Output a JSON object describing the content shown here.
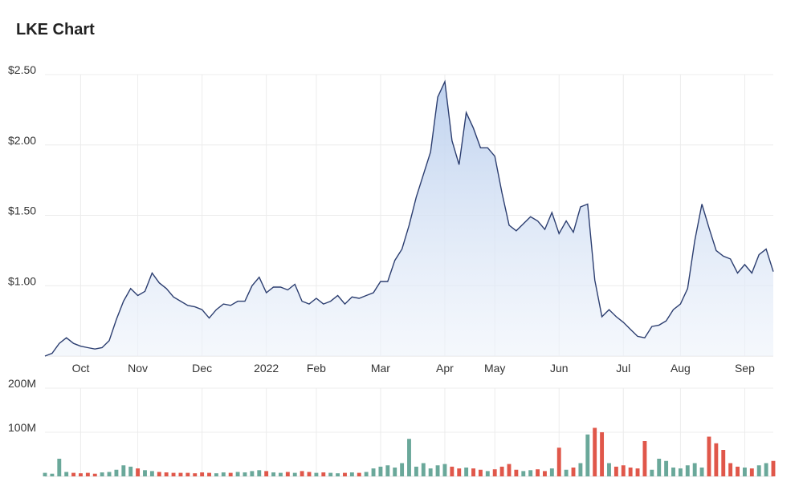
{
  "chart_data": [
    {
      "type": "area",
      "title": "LKE Chart",
      "color": "#2c3e70",
      "grid": true,
      "categories": [
        null,
        null,
        null,
        null,
        null,
        "Oct",
        null,
        null,
        null,
        null,
        null,
        null,
        null,
        "Nov",
        null,
        null,
        null,
        null,
        null,
        null,
        null,
        null,
        "Dec",
        null,
        null,
        null,
        null,
        null,
        null,
        null,
        null,
        "2022",
        null,
        null,
        null,
        null,
        null,
        null,
        "Feb",
        null,
        null,
        null,
        null,
        null,
        null,
        null,
        null,
        "Mar",
        null,
        null,
        null,
        null,
        null,
        null,
        null,
        null,
        "Apr",
        null,
        null,
        null,
        null,
        null,
        null,
        "May",
        null,
        null,
        null,
        null,
        null,
        null,
        null,
        null,
        "Jun",
        null,
        null,
        null,
        null,
        null,
        null,
        null,
        null,
        "Jul",
        null,
        null,
        null,
        null,
        null,
        null,
        null,
        "Aug",
        null,
        null,
        null,
        null,
        null,
        null,
        null,
        null,
        "Sep",
        null,
        null,
        null,
        null
      ],
      "values": [
        0.5,
        0.52,
        0.59,
        0.63,
        0.59,
        0.57,
        0.56,
        0.55,
        0.56,
        0.61,
        0.76,
        0.89,
        0.98,
        0.93,
        0.96,
        1.09,
        1.02,
        0.98,
        0.92,
        0.89,
        0.86,
        0.85,
        0.83,
        0.77,
        0.83,
        0.87,
        0.86,
        0.89,
        0.89,
        1.0,
        1.06,
        0.95,
        0.99,
        0.99,
        0.97,
        1.01,
        0.89,
        0.87,
        0.91,
        0.87,
        0.89,
        0.93,
        0.87,
        0.92,
        0.91,
        0.93,
        0.95,
        1.03,
        1.03,
        1.18,
        1.26,
        1.43,
        1.63,
        1.79,
        1.95,
        2.34,
        2.45,
        2.03,
        1.86,
        2.23,
        2.12,
        1.98,
        1.98,
        1.92,
        1.66,
        1.43,
        1.39,
        1.44,
        1.49,
        1.46,
        1.4,
        1.52,
        1.37,
        1.46,
        1.38,
        1.56,
        1.58,
        1.04,
        0.78,
        0.83,
        0.78,
        0.74,
        0.69,
        0.64,
        0.63,
        0.71,
        0.72,
        0.75,
        0.83,
        0.87,
        0.98,
        1.32,
        1.58,
        1.41,
        1.25,
        1.21,
        1.19,
        1.09,
        1.15,
        1.09,
        1.22,
        1.26,
        1.1
      ],
      "ylim": [
        0.5,
        2.5
      ],
      "yticks": [
        {
          "value": 1,
          "label": "$1.00"
        },
        {
          "value": 1.5,
          "label": "$1.50"
        },
        {
          "value": 2,
          "label": "$2.00"
        },
        {
          "value": 2.5,
          "label": "$2.50"
        }
      ]
    },
    {
      "type": "bar",
      "grid": true,
      "up_color": "#6aa89a",
      "down_color": "#e0574a",
      "values": [
        8000000,
        6000000,
        40000000,
        10000000,
        8000000,
        7000000,
        8000000,
        6000000,
        9000000,
        10000000,
        15000000,
        25000000,
        22000000,
        18000000,
        14000000,
        12000000,
        10000000,
        9000000,
        8000000,
        8000000,
        8000000,
        7000000,
        9000000,
        8000000,
        7000000,
        9000000,
        8000000,
        10000000,
        9000000,
        12000000,
        14000000,
        12000000,
        9000000,
        8000000,
        10000000,
        8000000,
        12000000,
        10000000,
        8000000,
        9000000,
        8000000,
        7000000,
        8000000,
        9000000,
        8000000,
        10000000,
        18000000,
        22000000,
        25000000,
        20000000,
        30000000,
        85000000,
        22000000,
        30000000,
        18000000,
        25000000,
        28000000,
        22000000,
        18000000,
        20000000,
        18000000,
        15000000,
        12000000,
        16000000,
        22000000,
        28000000,
        15000000,
        12000000,
        14000000,
        16000000,
        12000000,
        18000000,
        65000000,
        15000000,
        20000000,
        30000000,
        95000000,
        110000000,
        100000000,
        30000000,
        22000000,
        25000000,
        20000000,
        18000000,
        80000000,
        15000000,
        40000000,
        35000000,
        20000000,
        18000000,
        25000000,
        30000000,
        20000000,
        90000000,
        75000000,
        60000000,
        30000000,
        22000000,
        20000000,
        18000000,
        25000000,
        30000000,
        35000000
      ],
      "ylim": [
        0,
        200000000
      ],
      "yticks": [
        {
          "value": 100000000,
          "label": "100M"
        },
        {
          "value": 200000000,
          "label": "200M"
        }
      ]
    }
  ]
}
